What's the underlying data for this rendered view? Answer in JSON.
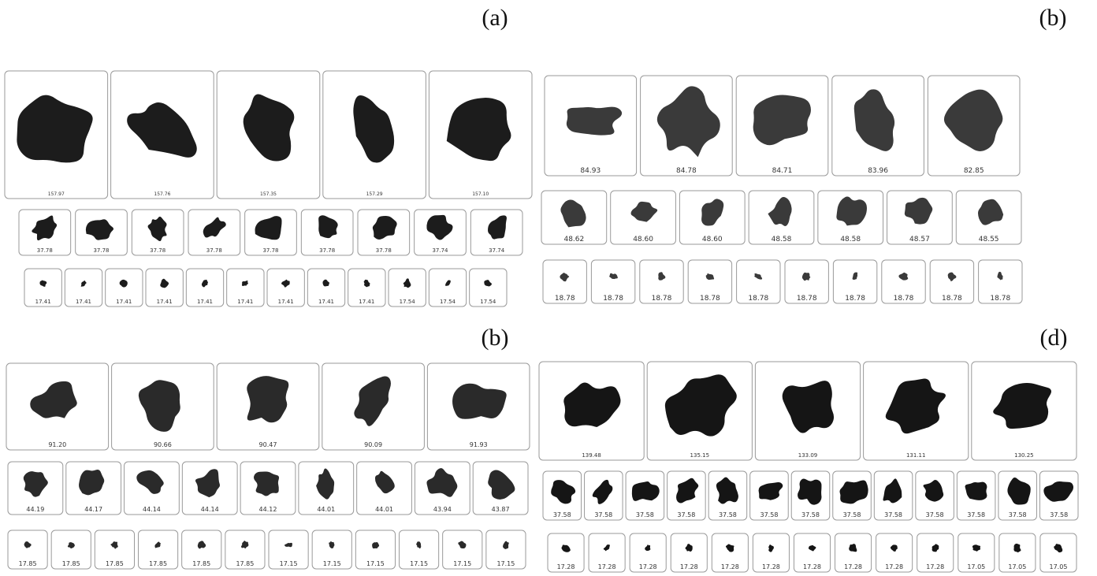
{
  "panels": [
    {
      "label": "(a)",
      "rows": [
        [
          "157.97",
          "157.76",
          "157.35",
          "157.29",
          "157.10"
        ],
        [
          "37.78",
          "37.78",
          "37.78",
          "37.78",
          "37.78",
          "37.78",
          "37.78",
          "37.74",
          "37.74"
        ],
        [
          "17.41",
          "17.41",
          "17.41",
          "17.41",
          "17.41",
          "17.41",
          "17.41",
          "17.41",
          "17.41",
          "17.54",
          "17.54",
          "17.54"
        ]
      ]
    },
    {
      "label": "(b)",
      "rows": [
        [
          "84.93",
          "84.78",
          "84.71",
          "83.96",
          "82.85"
        ],
        [
          "48.62",
          "48.60",
          "48.60",
          "48.58",
          "48.58",
          "48.57",
          "48.55"
        ],
        [
          "18.78",
          "18.78",
          "18.78",
          "18.78",
          "18.78",
          "18.78",
          "18.78",
          "18.78",
          "18.78",
          "18.78"
        ]
      ]
    },
    {
      "label": "(b)",
      "rows": [
        [
          "91.20",
          "90.66",
          "90.47",
          "90.09",
          "91.93"
        ],
        [
          "44.19",
          "44.17",
          "44.14",
          "44.14",
          "44.12",
          "44.01",
          "44.01",
          "43.94",
          "43.87"
        ],
        [
          "17.85",
          "17.85",
          "17.85",
          "17.85",
          "17.85",
          "17.85",
          "17.15",
          "17.15",
          "17.15",
          "17.15",
          "17.15",
          "17.15"
        ]
      ]
    },
    {
      "label": "(d)",
      "rows": [
        [
          "139.48",
          "135.15",
          "133.09",
          "131.11",
          "130.25"
        ],
        [
          "37.58",
          "37.58",
          "37.58",
          "37.58",
          "37.58",
          "37.58",
          "37.58",
          "37.58",
          "37.58",
          "37.58",
          "37.58",
          "37.58",
          "37.58"
        ],
        [
          "17.28",
          "17.28",
          "17.28",
          "17.28",
          "17.28",
          "17.28",
          "17.28",
          "17.28",
          "17.28",
          "17.28",
          "17.05",
          "17.05",
          "17.05"
        ]
      ]
    }
  ]
}
